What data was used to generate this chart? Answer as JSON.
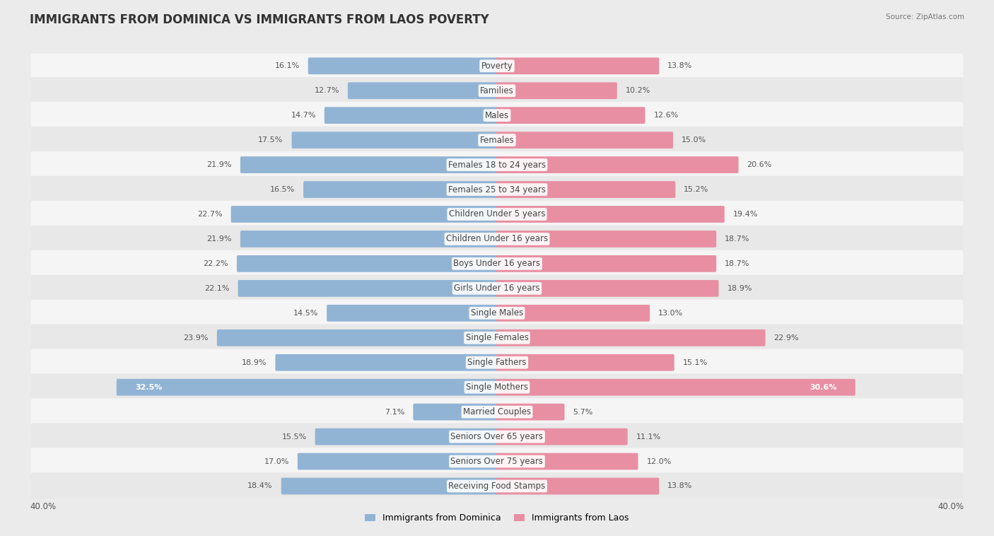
{
  "title": "IMMIGRANTS FROM DOMINICA VS IMMIGRANTS FROM LAOS POVERTY",
  "source": "Source: ZipAtlas.com",
  "categories": [
    "Poverty",
    "Families",
    "Males",
    "Females",
    "Females 18 to 24 years",
    "Females 25 to 34 years",
    "Children Under 5 years",
    "Children Under 16 years",
    "Boys Under 16 years",
    "Girls Under 16 years",
    "Single Males",
    "Single Females",
    "Single Fathers",
    "Single Mothers",
    "Married Couples",
    "Seniors Over 65 years",
    "Seniors Over 75 years",
    "Receiving Food Stamps"
  ],
  "dominica_values": [
    16.1,
    12.7,
    14.7,
    17.5,
    21.9,
    16.5,
    22.7,
    21.9,
    22.2,
    22.1,
    14.5,
    23.9,
    18.9,
    32.5,
    7.1,
    15.5,
    17.0,
    18.4
  ],
  "laos_values": [
    13.8,
    10.2,
    12.6,
    15.0,
    20.6,
    15.2,
    19.4,
    18.7,
    18.7,
    18.9,
    13.0,
    22.9,
    15.1,
    30.6,
    5.7,
    11.1,
    12.0,
    13.8
  ],
  "dominica_color": "#92b4d4",
  "laos_color": "#e88fa3",
  "dominica_label": "Immigrants from Dominica",
  "laos_label": "Immigrants from Laos",
  "axis_max": 40.0,
  "background_color": "#ebebeb",
  "row_bg_even": "#f5f5f5",
  "row_bg_odd": "#e8e8e8",
  "label_fontsize": 8.5,
  "value_fontsize": 8.0,
  "title_fontsize": 12
}
